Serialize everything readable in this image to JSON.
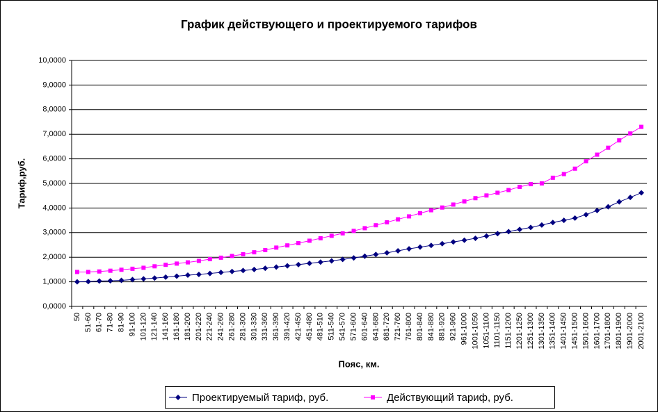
{
  "chart_data": {
    "type": "line",
    "title": "График действующего и проектируемого тарифов",
    "x_label": "Пояс, км.",
    "y_label": "Тариф,руб.",
    "categories": [
      "50",
      "51-60",
      "61-70",
      "71-80",
      "81-90",
      "91-100",
      "101-120",
      "121-140",
      "141-160",
      "161-180",
      "181-200",
      "201-220",
      "221-240",
      "241-260",
      "261-280",
      "281-300",
      "301-330",
      "331-360",
      "361-390",
      "391-420",
      "421-450",
      "451-480",
      "481-510",
      "511-540",
      "541-570",
      "571-600",
      "601-640",
      "641-680",
      "681-720",
      "721-760",
      "761-800",
      "801-840",
      "841-880",
      "881-920",
      "921-960",
      "961-1000",
      "1001-1050",
      "1051-1100",
      "1101-1150",
      "1151-1200",
      "1201-1250",
      "1251-1300",
      "1301-1350",
      "1351-1400",
      "1401-1450",
      "1451-1500",
      "1501-1600",
      "1601-1700",
      "1701-1800",
      "1801-1900",
      "1901-2000",
      "2001-2100"
    ],
    "series": [
      {
        "name": "Проектируемый тариф, руб.",
        "color": "#000080",
        "marker": "diamond",
        "values": [
          1.0,
          1.01,
          1.03,
          1.04,
          1.06,
          1.09,
          1.12,
          1.15,
          1.19,
          1.23,
          1.27,
          1.3,
          1.34,
          1.38,
          1.42,
          1.46,
          1.5,
          1.55,
          1.6,
          1.65,
          1.7,
          1.75,
          1.8,
          1.85,
          1.91,
          1.97,
          2.04,
          2.11,
          2.18,
          2.26,
          2.34,
          2.41,
          2.48,
          2.55,
          2.62,
          2.69,
          2.77,
          2.86,
          2.96,
          3.04,
          3.13,
          3.21,
          3.31,
          3.41,
          3.5,
          3.59,
          3.73,
          3.9,
          4.05,
          4.25,
          4.43,
          4.62
        ]
      },
      {
        "name": "Действующий тариф, руб.",
        "color": "#ff00ff",
        "marker": "square",
        "values": [
          1.4,
          1.4,
          1.42,
          1.45,
          1.49,
          1.53,
          1.57,
          1.63,
          1.69,
          1.74,
          1.79,
          1.85,
          1.92,
          1.98,
          2.05,
          2.12,
          2.2,
          2.29,
          2.39,
          2.48,
          2.57,
          2.67,
          2.77,
          2.87,
          2.97,
          3.07,
          3.18,
          3.3,
          3.42,
          3.54,
          3.66,
          3.79,
          3.91,
          4.02,
          4.14,
          4.27,
          4.4,
          4.51,
          4.62,
          4.73,
          4.86,
          4.97,
          5.0,
          5.23,
          5.38,
          5.6,
          5.9,
          6.17,
          6.45,
          6.75,
          7.03,
          7.3
        ]
      }
    ],
    "ylim": [
      0,
      10
    ],
    "yticks": [
      {
        "value": 0,
        "label": "0,0000"
      },
      {
        "value": 1,
        "label": "1,0000"
      },
      {
        "value": 2,
        "label": "2,0000"
      },
      {
        "value": 3,
        "label": "3,0000"
      },
      {
        "value": 4,
        "label": "4,0000"
      },
      {
        "value": 5,
        "label": "5,0000"
      },
      {
        "value": 6,
        "label": "6,0000"
      },
      {
        "value": 7,
        "label": "7,0000"
      },
      {
        "value": 8,
        "label": "8,0000"
      },
      {
        "value": 9,
        "label": "9,0000"
      },
      {
        "value": 10,
        "label": "10,0000"
      }
    ],
    "grid": true,
    "legend": "bottom"
  }
}
